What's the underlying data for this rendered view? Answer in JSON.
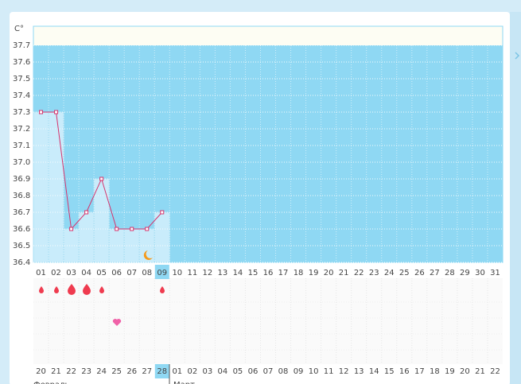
{
  "chart_data": {
    "type": "line",
    "y_label": "C°",
    "categories": [
      "01",
      "02",
      "03",
      "04",
      "05",
      "06",
      "07",
      "08",
      "09",
      "10",
      "11",
      "12",
      "13",
      "14",
      "15",
      "16",
      "17",
      "18",
      "19",
      "20",
      "21",
      "22",
      "23",
      "24",
      "25",
      "26",
      "27",
      "28",
      "29",
      "30",
      "31"
    ],
    "values": [
      37.3,
      37.3,
      36.6,
      36.7,
      36.9,
      36.6,
      36.6,
      36.6,
      36.7,
      null,
      null,
      null,
      null,
      null,
      null,
      null,
      null,
      null,
      null,
      null,
      null,
      null,
      null,
      null,
      null,
      null,
      null,
      null,
      null,
      null,
      null
    ],
    "color": "#d6336c",
    "bar_color": "#c9ecfb",
    "ylim": [
      36.4,
      37.8
    ],
    "yticks": [
      36.4,
      36.5,
      36.6,
      36.7,
      36.8,
      36.9,
      {
        "value": 37,
        "label": "37.0"
      },
      37.1,
      37.2,
      37.3,
      37.4,
      37.5,
      37.6,
      37.7
    ],
    "grid": true,
    "bottom_dates": [
      {
        "label": "20"
      },
      {
        "label": "21"
      },
      {
        "label": "22"
      },
      {
        "label": "23"
      },
      {
        "label": "24",
        "weekend": true
      },
      {
        "label": "25",
        "weekend": true
      },
      {
        "label": "26"
      },
      {
        "label": "27"
      },
      {
        "label": "28"
      },
      {
        "label": "01"
      },
      {
        "label": "02"
      },
      {
        "label": "03",
        "weekend": true
      },
      {
        "label": "04",
        "weekend": true
      },
      {
        "label": "05"
      },
      {
        "label": "06"
      },
      {
        "label": "07"
      },
      {
        "label": "08"
      },
      {
        "label": "09"
      },
      {
        "label": "10",
        "weekend": true
      },
      {
        "label": "11",
        "weekend": true
      },
      {
        "label": "12"
      },
      {
        "label": "13"
      },
      {
        "label": "14"
      },
      {
        "label": "15"
      },
      {
        "label": "16"
      },
      {
        "label": "17",
        "weekend": true
      },
      {
        "label": "18",
        "weekend": true
      },
      {
        "label": "19"
      },
      {
        "label": "20"
      },
      {
        "label": "21"
      },
      {
        "label": "22"
      }
    ],
    "months": [
      "Февраль",
      "Март"
    ]
  }
}
